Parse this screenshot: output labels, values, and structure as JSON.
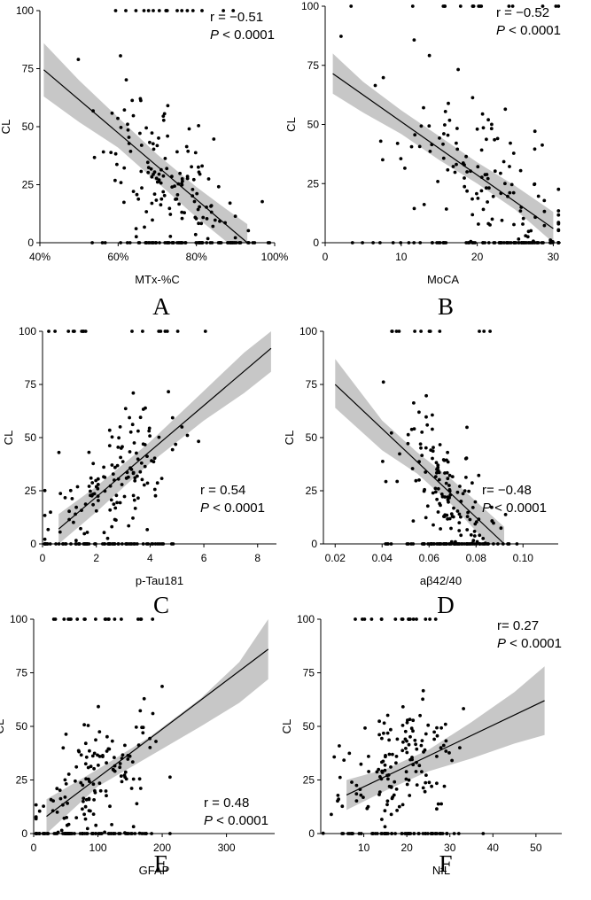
{
  "chart_data": [
    {
      "type": "scatter",
      "panel_label": "A",
      "xlabel": "MTx-%C",
      "ylabel": "CL",
      "xlim": [
        40,
        100
      ],
      "ylim": [
        0,
        100
      ],
      "xticks": [
        40,
        60,
        80,
        100
      ],
      "xtick_labels": [
        "40%",
        "60%",
        "80%",
        "100%"
      ],
      "yticks": [
        0,
        25,
        50,
        75,
        100
      ],
      "ytick_labels": [
        "0",
        "25",
        "50",
        "75",
        "100"
      ],
      "stat_r": "r = −0.51",
      "stat_p_label": "P",
      "stat_p_rest": " < 0.0001",
      "stat_pos": "top-right",
      "fit": {
        "x": [
          41,
          93
        ],
        "y": [
          74.5,
          0
        ]
      },
      "band": {
        "x": [
          41,
          50,
          60,
          70,
          80,
          88,
          93
        ],
        "upper": [
          86,
          70,
          54,
          38,
          24,
          14,
          8
        ],
        "lower": [
          63,
          52,
          41,
          26,
          11,
          0,
          0
        ]
      },
      "n_points": 230,
      "seed": 11,
      "cluster": {
        "x_mean": 75,
        "x_sd": 10,
        "y_sd": 15
      }
    },
    {
      "type": "scatter",
      "panel_label": "B",
      "xlabel": "MoCA",
      "ylabel": "CL",
      "xlim": [
        0,
        31
      ],
      "ylim": [
        0,
        100
      ],
      "xticks": [
        0,
        10,
        20,
        30
      ],
      "xtick_labels": [
        "0",
        "10",
        "20",
        "30"
      ],
      "yticks": [
        0,
        25,
        50,
        75,
        100
      ],
      "ytick_labels": [
        "0",
        "25",
        "50",
        "75",
        "100"
      ],
      "stat_r": "r = −0.52",
      "stat_p_label": "P",
      "stat_p_rest": " < 0.0001",
      "stat_pos": "top-right",
      "fit": {
        "x": [
          1,
          30
        ],
        "y": [
          71.5,
          6
        ]
      },
      "band": {
        "x": [
          1,
          5,
          10,
          15,
          20,
          25,
          30
        ],
        "upper": [
          80,
          68,
          56,
          45,
          34,
          24,
          13
        ],
        "lower": [
          63,
          55,
          46,
          35,
          25,
          14,
          0
        ]
      },
      "n_points": 220,
      "seed": 23,
      "cluster": {
        "x_mean": 21,
        "x_sd": 6.5,
        "y_sd": 15
      }
    },
    {
      "type": "scatter",
      "panel_label": "C",
      "xlabel": "p-Tau181",
      "ylabel": "CL",
      "xlim": [
        0,
        8.7
      ],
      "ylim": [
        0,
        100
      ],
      "xticks": [
        0,
        2,
        4,
        6,
        8
      ],
      "xtick_labels": [
        "0",
        "2",
        "4",
        "6",
        "8"
      ],
      "yticks": [
        0,
        25,
        50,
        75,
        100
      ],
      "ytick_labels": [
        "0",
        "25",
        "50",
        "75",
        "100"
      ],
      "stat_r": "r = 0.54",
      "stat_p_label": "P",
      "stat_p_rest": " < 0.0001",
      "stat_pos": "mid-right",
      "fit": {
        "x": [
          0.6,
          8.5
        ],
        "y": [
          7,
          92
        ]
      },
      "band": {
        "x": [
          0.6,
          2,
          4,
          6,
          7.5,
          8.5
        ],
        "upper": [
          14,
          27,
          48,
          72,
          90,
          104
        ],
        "lower": [
          0,
          15,
          38,
          58,
          71,
          81
        ]
      },
      "n_points": 220,
      "seed": 37,
      "cluster": {
        "x_mean": 2.6,
        "x_sd": 1.4,
        "y_sd": 15
      }
    },
    {
      "type": "scatter",
      "panel_label": "D",
      "xlabel": "aβ42/40",
      "ylabel": "CL",
      "xlim": [
        0.015,
        0.115
      ],
      "ylim": [
        0,
        100
      ],
      "xticks": [
        0.02,
        0.04,
        0.06,
        0.08,
        0.1
      ],
      "xtick_labels": [
        "0.02",
        "0.04",
        "0.06",
        "0.08",
        "0.10"
      ],
      "yticks": [
        0,
        25,
        50,
        75,
        100
      ],
      "ytick_labels": [
        "0",
        "25",
        "50",
        "75",
        "100"
      ],
      "stat_r": "r= −0.48",
      "stat_p_label": "P",
      "stat_p_rest": " < 0.0001",
      "stat_pos": "mid-right",
      "fit": {
        "x": [
          0.02,
          0.092
        ],
        "y": [
          75,
          0
        ]
      },
      "band": {
        "x": [
          0.02,
          0.04,
          0.055,
          0.07,
          0.085,
          0.092
        ],
        "upper": [
          87,
          58,
          43,
          30,
          15,
          8
        ],
        "lower": [
          64,
          44,
          33,
          18,
          0,
          0
        ]
      },
      "n_points": 220,
      "seed": 53,
      "cluster": {
        "x_mean": 0.068,
        "x_sd": 0.012,
        "y_sd": 14
      }
    },
    {
      "type": "scatter",
      "panel_label": "E",
      "xlabel": "GFAP",
      "ylabel": "CL",
      "xlim": [
        0,
        375
      ],
      "ylim": [
        0,
        100
      ],
      "xticks": [
        0,
        100,
        200,
        300
      ],
      "xtick_labels": [
        "0",
        "100",
        "200",
        "300"
      ],
      "yticks": [
        0,
        25,
        50,
        75,
        100
      ],
      "ytick_labels": [
        "0",
        "25",
        "50",
        "75",
        "100"
      ],
      "stat_r": "r = 0.48",
      "stat_p_label": "P",
      "stat_p_rest": " < 0.0001",
      "stat_pos": "bottom-right",
      "fit": {
        "x": [
          20,
          365
        ],
        "y": [
          8,
          86
        ]
      },
      "band": {
        "x": [
          20,
          100,
          180,
          260,
          320,
          365
        ],
        "upper": [
          16,
          30,
          45,
          63,
          80,
          100
        ],
        "lower": [
          0,
          22,
          36,
          50,
          61,
          72
        ]
      },
      "n_points": 230,
      "seed": 71,
      "cluster": {
        "x_mean": 100,
        "x_sd": 55,
        "y_sd": 14
      }
    },
    {
      "type": "scatter",
      "panel_label": "F",
      "xlabel": "NfL",
      "ylabel": "CL",
      "xlim": [
        0,
        56
      ],
      "ylim": [
        0,
        100
      ],
      "xticks": [
        10,
        20,
        30,
        40,
        50
      ],
      "xtick_labels": [
        "10",
        "20",
        "30",
        "40",
        "50"
      ],
      "yticks": [
        0,
        25,
        50,
        75,
        100
      ],
      "ytick_labels": [
        "0",
        "25",
        "50",
        "75",
        "100"
      ],
      "stat_r": "r= 0.27",
      "stat_p_label": "P",
      "stat_p_rest": " < 0.0001",
      "stat_pos": "top-right",
      "fit": {
        "x": [
          6,
          52
        ],
        "y": [
          18,
          62
        ]
      },
      "band": {
        "x": [
          6,
          15,
          25,
          35,
          45,
          52
        ],
        "upper": [
          25,
          30,
          39,
          52,
          66,
          78
        ],
        "lower": [
          11,
          20,
          29,
          35,
          42,
          46
        ]
      },
      "n_points": 220,
      "seed": 97,
      "cluster": {
        "x_mean": 18,
        "x_sd": 7,
        "y_sd": 14
      }
    }
  ]
}
